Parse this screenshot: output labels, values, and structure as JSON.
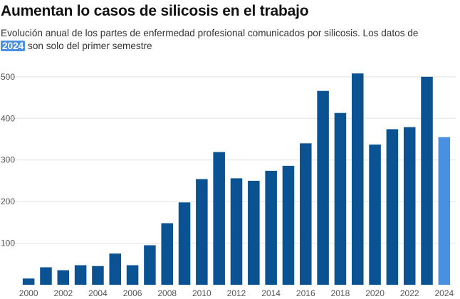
{
  "title": "Aumentan lo casos de silicosis en el trabajo",
  "subtitle": {
    "before": "Evolución anual de los partes de enfermedad profesional comunicados por silicosis. Los datos de",
    "highlight": "2024",
    "after": "son solo del primer semestre"
  },
  "colors": {
    "bar": "#0a5291",
    "highlight_bar": "#4a90e2",
    "grid": "#e3e3e3",
    "axis_text": "#555555"
  },
  "chart_data": {
    "type": "bar",
    "categories": [
      "2000",
      "2001",
      "2002",
      "2003",
      "2004",
      "2005",
      "2006",
      "2007",
      "2008",
      "2009",
      "2010",
      "2011",
      "2012",
      "2013",
      "2014",
      "2015",
      "2016",
      "2017",
      "2018",
      "2019",
      "2020",
      "2021",
      "2022",
      "2023",
      "2024"
    ],
    "values": [
      15,
      42,
      35,
      47,
      45,
      75,
      47,
      95,
      148,
      198,
      254,
      319,
      256,
      250,
      274,
      286,
      340,
      466,
      413,
      508,
      337,
      374,
      379,
      500,
      355
    ],
    "highlight_category": "2024",
    "x_tick_labels": [
      "2000",
      "2002",
      "2004",
      "2006",
      "2008",
      "2010",
      "2012",
      "2014",
      "2016",
      "2018",
      "2020",
      "2022",
      "2024"
    ],
    "y_ticks": [
      100,
      200,
      300,
      400,
      500
    ],
    "ylim": [
      0,
      510
    ],
    "grid": true,
    "xlabel": "",
    "ylabel": ""
  }
}
